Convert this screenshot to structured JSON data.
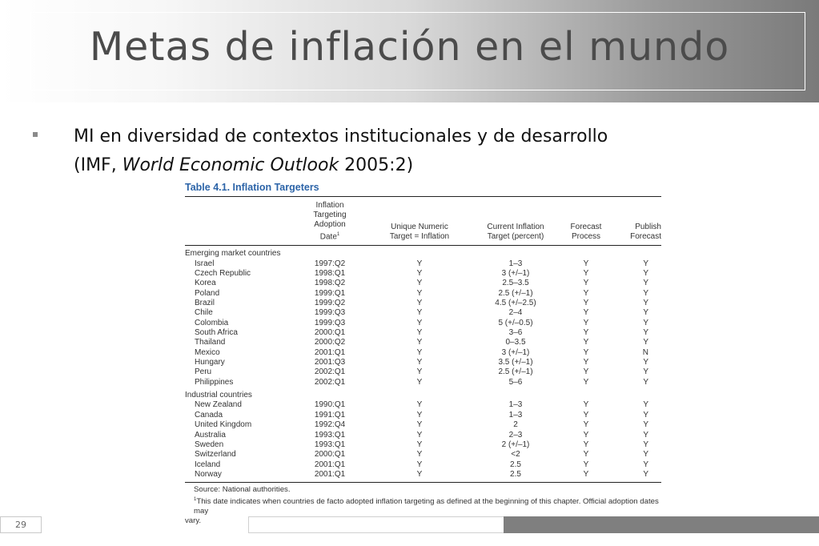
{
  "slide": {
    "title": "Metas de inflación en el mundo",
    "bullet_line1": "MI en diversidad de contextos institucionales y de desarrollo",
    "bullet_line2_prefix": "(IMF, ",
    "bullet_line2_italic": "World Economic Outlook",
    "bullet_line2_suffix": " 2005:2)",
    "page_number": "29"
  },
  "table": {
    "caption": "Table 4.1. Inflation Targeters",
    "headers": {
      "adoption_l1": "Inflation Targeting",
      "adoption_l2": "Adoption Date",
      "adoption_sup": "1",
      "unique_l1": "Unique Numeric",
      "unique_l2": "Target = Inflation",
      "current_l1": "Current Inflation",
      "current_l2": "Target (percent)",
      "forecast_l1": "Forecast",
      "forecast_l2": "Process",
      "publish_l1": "Publish",
      "publish_l2": "Forecast"
    },
    "groups": [
      {
        "label": "Emerging market countries",
        "rows": [
          [
            "Israel",
            "1997:Q2",
            "Y",
            "1–3",
            "Y",
            "Y"
          ],
          [
            "Czech Republic",
            "1998:Q1",
            "Y",
            "3 (+/–1)",
            "Y",
            "Y"
          ],
          [
            "Korea",
            "1998:Q2",
            "Y",
            "2.5–3.5",
            "Y",
            "Y"
          ],
          [
            "Poland",
            "1999:Q1",
            "Y",
            "2.5 (+/–1)",
            "Y",
            "Y"
          ],
          [
            "Brazil",
            "1999:Q2",
            "Y",
            "4.5 (+/–2.5)",
            "Y",
            "Y"
          ],
          [
            "Chile",
            "1999:Q3",
            "Y",
            "2–4",
            "Y",
            "Y"
          ],
          [
            "Colombia",
            "1999:Q3",
            "Y",
            "5 (+/–0.5)",
            "Y",
            "Y"
          ],
          [
            "South Africa",
            "2000:Q1",
            "Y",
            "3–6",
            "Y",
            "Y"
          ],
          [
            "Thailand",
            "2000:Q2",
            "Y",
            "0–3.5",
            "Y",
            "Y"
          ],
          [
            "Mexico",
            "2001:Q1",
            "Y",
            "3 (+/–1)",
            "Y",
            "N"
          ],
          [
            "Hungary",
            "2001:Q3",
            "Y",
            "3.5 (+/–1)",
            "Y",
            "Y"
          ],
          [
            "Peru",
            "2002:Q1",
            "Y",
            "2.5 (+/–1)",
            "Y",
            "Y"
          ],
          [
            "Philippines",
            "2002:Q1",
            "Y",
            "5–6",
            "Y",
            "Y"
          ]
        ]
      },
      {
        "label": "Industrial countries",
        "rows": [
          [
            "New Zealand",
            "1990:Q1",
            "Y",
            "1–3",
            "Y",
            "Y"
          ],
          [
            "Canada",
            "1991:Q1",
            "Y",
            "1–3",
            "Y",
            "Y"
          ],
          [
            "United Kingdom",
            "1992:Q4",
            "Y",
            "2",
            "Y",
            "Y"
          ],
          [
            "Australia",
            "1993:Q1",
            "Y",
            "2–3",
            "Y",
            "Y"
          ],
          [
            "Sweden",
            "1993:Q1",
            "Y",
            "2 (+/–1)",
            "Y",
            "Y"
          ],
          [
            "Switzerland",
            "2000:Q1",
            "Y",
            "<2",
            "Y",
            "Y"
          ],
          [
            "Iceland",
            "2001:Q1",
            "Y",
            "2.5",
            "Y",
            "Y"
          ],
          [
            "Norway",
            "2001:Q1",
            "Y",
            "2.5",
            "Y",
            "Y"
          ]
        ]
      }
    ],
    "source_note": "Source: National authorities.",
    "footnote_sup": "1",
    "footnote_line1": "This date indicates when countries de facto adopted inflation targeting as defined at the beginning of this chapter. Official adoption dates may",
    "footnote_line2": "vary."
  }
}
